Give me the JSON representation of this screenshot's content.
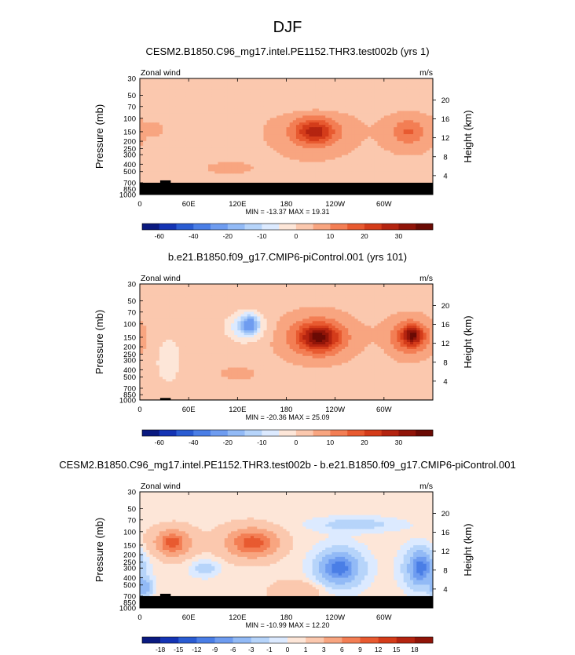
{
  "figure_title": "DJF",
  "chart_data": [
    {
      "type": "heatmap",
      "title": "CESM2.B1850.C96_mg17.intel.PE1152.THR3.test002b (yrs 1)",
      "variable_label": "Zonal wind",
      "units_label": "m/s",
      "ylabel": "Pressure (mb)",
      "ylabel_right": "Height (km)",
      "x_ticks": [
        "0",
        "60E",
        "120E",
        "180",
        "120W",
        "60W"
      ],
      "x_tick_lon": [
        0,
        60,
        120,
        180,
        240,
        300
      ],
      "xlim": [
        0,
        360
      ],
      "y_ticks": [
        "30",
        "50",
        "70",
        "100",
        "150",
        "200",
        "250",
        "300",
        "400",
        "500",
        "700",
        "850",
        "1000"
      ],
      "y_tick_p": [
        30,
        50,
        70,
        100,
        150,
        200,
        250,
        300,
        400,
        500,
        700,
        850,
        1000
      ],
      "ylim": [
        1000,
        30
      ],
      "height_ticks": [
        "4",
        "8",
        "12",
        "16",
        "20"
      ],
      "height_tick_km": [
        4,
        8,
        12,
        16,
        20
      ],
      "stats": "MIN = -13.37  MAX =  19.31",
      "colorbar": "main",
      "background_value": 4,
      "features": [
        {
          "lon": 150,
          "p": 65,
          "rlon": 170,
          "rp": 0.3,
          "value": 0
        },
        {
          "lon": 50,
          "p": 150,
          "rlon": 10,
          "rp": 0.25,
          "value": 0
        },
        {
          "lon": 210,
          "p": 150,
          "rlon": 55,
          "rp": 0.85,
          "value": 7
        },
        {
          "lon": 215,
          "p": 150,
          "rlon": 38,
          "rp": 0.55,
          "value": 14
        },
        {
          "lon": 215,
          "p": 150,
          "rlon": 22,
          "rp": 0.35,
          "value": 19
        },
        {
          "lon": 330,
          "p": 150,
          "rlon": 40,
          "rp": 0.75,
          "value": 7
        },
        {
          "lon": 330,
          "p": 150,
          "rlon": 22,
          "rp": 0.4,
          "value": 14
        },
        {
          "lon": 20,
          "p": 140,
          "rlon": 8,
          "rp": 0.2,
          "value": 8
        },
        {
          "lon": 110,
          "p": 450,
          "rlon": 40,
          "rp": 0.25,
          "value": 6
        }
      ],
      "terrain_top_p": 700
    },
    {
      "type": "heatmap",
      "title": "b.e21.B1850.f09_g17.CMIP6-piControl.001 (yrs 101)",
      "variable_label": "Zonal wind",
      "units_label": "m/s",
      "ylabel": "Pressure (mb)",
      "ylabel_right": "Height (km)",
      "x_ticks": [
        "0",
        "60E",
        "120E",
        "180",
        "120W",
        "60W"
      ],
      "x_tick_lon": [
        0,
        60,
        120,
        180,
        240,
        300
      ],
      "xlim": [
        0,
        360
      ],
      "y_ticks": [
        "30",
        "50",
        "70",
        "100",
        "150",
        "200",
        "250",
        "300",
        "400",
        "500",
        "700",
        "850",
        "1000"
      ],
      "y_tick_p": [
        30,
        50,
        70,
        100,
        150,
        200,
        250,
        300,
        400,
        500,
        700,
        850,
        1000
      ],
      "ylim": [
        1000,
        30
      ],
      "height_ticks": [
        "4",
        "8",
        "12",
        "16",
        "20"
      ],
      "height_tick_km": [
        4,
        8,
        12,
        16,
        20
      ],
      "stats": "MIN = -20.36  MAX =  25.09",
      "colorbar": "main",
      "background_value": 3,
      "features": [
        {
          "lon": 35,
          "p": 300,
          "rlon": 20,
          "rp": 0.9,
          "value": -3
        },
        {
          "lon": 130,
          "p": 110,
          "rlon": 25,
          "rp": 0.45,
          "value": -12
        },
        {
          "lon": 135,
          "p": 100,
          "rlon": 12,
          "rp": 0.3,
          "value": -18
        },
        {
          "lon": 215,
          "p": 150,
          "rlon": 58,
          "rp": 0.9,
          "value": 8
        },
        {
          "lon": 220,
          "p": 150,
          "rlon": 40,
          "rp": 0.6,
          "value": 17
        },
        {
          "lon": 220,
          "p": 150,
          "rlon": 22,
          "rp": 0.38,
          "value": 24
        },
        {
          "lon": 330,
          "p": 150,
          "rlon": 40,
          "rp": 0.8,
          "value": 8
        },
        {
          "lon": 333,
          "p": 150,
          "rlon": 25,
          "rp": 0.5,
          "value": 17
        },
        {
          "lon": 335,
          "p": 140,
          "rlon": 12,
          "rp": 0.3,
          "value": 23
        },
        {
          "lon": 120,
          "p": 450,
          "rlon": 40,
          "rp": 0.35,
          "value": 6
        },
        {
          "lon": 290,
          "p": 300,
          "rlon": 12,
          "rp": 0.4,
          "value": 0
        }
      ],
      "terrain_top_p": 985
    },
    {
      "type": "heatmap",
      "title": "CESM2.B1850.C96_mg17.intel.PE1152.THR3.test002b - b.e21.B1850.f09_g17.CMIP6-piControl.001",
      "variable_label": "Zonal wind",
      "units_label": "m/s",
      "ylabel": "Pressure (mb)",
      "ylabel_right": "Height (km)",
      "x_ticks": [
        "0",
        "60E",
        "120E",
        "180",
        "120W",
        "60W"
      ],
      "x_tick_lon": [
        0,
        60,
        120,
        180,
        240,
        300
      ],
      "xlim": [
        0,
        360
      ],
      "y_ticks": [
        "30",
        "50",
        "70",
        "100",
        "150",
        "200",
        "250",
        "300",
        "400",
        "500",
        "700",
        "850",
        "1000"
      ],
      "y_tick_p": [
        30,
        50,
        70,
        100,
        150,
        200,
        250,
        300,
        400,
        500,
        700,
        850,
        1000
      ],
      "ylim": [
        1000,
        30
      ],
      "height_ticks": [
        "4",
        "8",
        "12",
        "16",
        "20"
      ],
      "height_tick_km": [
        4,
        8,
        12,
        16,
        20
      ],
      "stats": "MIN = -10.99  MAX =  12.20",
      "colorbar": "diff",
      "background_value": 0.5,
      "features": [
        {
          "lon": 40,
          "p": 140,
          "rlon": 30,
          "rp": 0.5,
          "value": 5
        },
        {
          "lon": 40,
          "p": 140,
          "rlon": 15,
          "rp": 0.3,
          "value": 8
        },
        {
          "lon": 135,
          "p": 140,
          "rlon": 40,
          "rp": 0.55,
          "value": 5
        },
        {
          "lon": 140,
          "p": 140,
          "rlon": 25,
          "rp": 0.35,
          "value": 8
        },
        {
          "lon": 80,
          "p": 300,
          "rlon": 20,
          "rp": 0.3,
          "value": -2
        },
        {
          "lon": 245,
          "p": 300,
          "rlon": 35,
          "rp": 0.7,
          "value": -4
        },
        {
          "lon": 245,
          "p": 300,
          "rlon": 20,
          "rp": 0.4,
          "value": -8
        },
        {
          "lon": 345,
          "p": 300,
          "rlon": 25,
          "rp": 0.7,
          "value": -4
        },
        {
          "lon": 345,
          "p": 300,
          "rlon": 12,
          "rp": 0.45,
          "value": -8
        },
        {
          "lon": 195,
          "p": 600,
          "rlon": 35,
          "rp": 0.35,
          "value": 3
        },
        {
          "lon": 265,
          "p": 80,
          "rlon": 60,
          "rp": 0.25,
          "value": -2
        },
        {
          "lon": 5,
          "p": 550,
          "rlon": 10,
          "rp": 0.3,
          "value": -5
        }
      ],
      "terrain_top_p": 700
    }
  ],
  "colorbars": {
    "main": {
      "levels": [
        -60,
        -50,
        -40,
        -30,
        -20,
        -15,
        -10,
        -5,
        0,
        5,
        10,
        15,
        20,
        25,
        30,
        35
      ],
      "tick_labels": [
        "-60",
        "-40",
        "-20",
        "-10",
        "0",
        "10",
        "20",
        "30"
      ],
      "tick_levels": [
        -60,
        -40,
        -20,
        -10,
        0,
        10,
        20,
        30
      ],
      "colors": [
        "#0a1a80",
        "#1434b4",
        "#2a5cd2",
        "#4a7ee6",
        "#6e9cf0",
        "#92baf6",
        "#b6d4fa",
        "#dceaff",
        "#fde6d8",
        "#fbc8ae",
        "#f8a580",
        "#f37e54",
        "#e85a30",
        "#d43c1a",
        "#b42410",
        "#901408",
        "#6a0a04"
      ]
    },
    "diff": {
      "levels": [
        -18,
        -15,
        -12,
        -9,
        -6,
        -3,
        -1,
        0,
        1,
        3,
        6,
        9,
        12,
        15,
        18
      ],
      "tick_labels": [
        "-18",
        "-15",
        "-12",
        "-9",
        "-6",
        "-3",
        "-1",
        "0",
        "1",
        "3",
        "6",
        "9",
        "12",
        "15",
        "18"
      ],
      "tick_levels": [
        -18,
        -15,
        -12,
        -9,
        -6,
        -3,
        -1,
        0,
        1,
        3,
        6,
        9,
        12,
        15,
        18
      ],
      "colors": [
        "#0a1a80",
        "#1434b4",
        "#2a5cd2",
        "#4a7ee6",
        "#6e9cf0",
        "#92baf6",
        "#b6d4fa",
        "#dceaff",
        "#fde6d8",
        "#fbc8ae",
        "#f8a580",
        "#f37e54",
        "#e85a30",
        "#d43c1a",
        "#b42410",
        "#901408"
      ]
    }
  }
}
